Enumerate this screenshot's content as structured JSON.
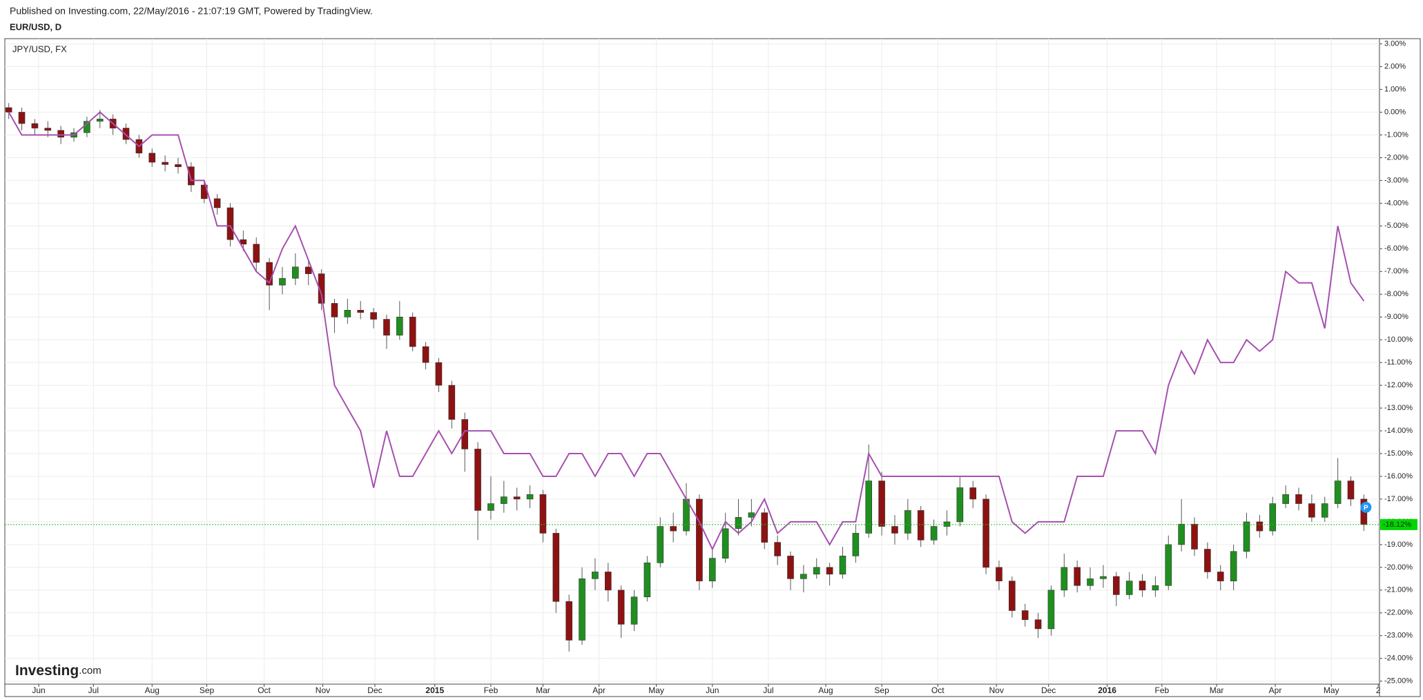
{
  "chart_data": {
    "type": "candlestick",
    "header": "Published on Investing.com, 22/May/2016 - 21:07:19 GMT, Powered by TradingView.",
    "title": "EUR/USD, D",
    "logo": {
      "main": "Investing",
      "suffix": ".com"
    },
    "badge": "P",
    "up_color": "#1f8f1f",
    "down_color": "#8e1212",
    "grid": true,
    "x": [
      0,
      1,
      2,
      3,
      4,
      5,
      6,
      7,
      8,
      9,
      10,
      11,
      12,
      13,
      14,
      15,
      16,
      17,
      18,
      19,
      20,
      21,
      22,
      23,
      24,
      25,
      26,
      27,
      28,
      29,
      30,
      31,
      32,
      33,
      34,
      35,
      36,
      37,
      38,
      39,
      40,
      41,
      42,
      43,
      44,
      45,
      46,
      47,
      48,
      49,
      50,
      51,
      52,
      53,
      54,
      55,
      56,
      57,
      58,
      59,
      60,
      61,
      62,
      63,
      64,
      65,
      66,
      67,
      68,
      69,
      70,
      71,
      72,
      73,
      74,
      75,
      76,
      77,
      78,
      79,
      80,
      81,
      82,
      83,
      84,
      85,
      86,
      87,
      88,
      89,
      90,
      91,
      92,
      93,
      94,
      95,
      96,
      97,
      98,
      99,
      100,
      101,
      102,
      103,
      104
    ],
    "open": [
      0.2,
      0,
      -0.5,
      -0.7,
      -0.8,
      -1.1,
      -0.9,
      -0.4,
      -0.3,
      -0.7,
      -1.2,
      -1.8,
      -2.2,
      -2.3,
      -2.4,
      -3.2,
      -3.8,
      -4.2,
      -5.6,
      -5.8,
      -6.6,
      -7.6,
      -7.3,
      -6.8,
      -7.1,
      -8.4,
      -9.0,
      -8.7,
      -8.8,
      -9.1,
      -9.8,
      -9.0,
      -10.3,
      -11.0,
      -12.0,
      -13.5,
      -14.8,
      -17.5,
      -17.2,
      -16.9,
      -17.0,
      -16.8,
      -18.5,
      -21.5,
      -23.2,
      -20.5,
      -20.2,
      -21.0,
      -22.5,
      -21.3,
      -19.8,
      -18.2,
      -18.4,
      -17.0,
      -20.6,
      -19.6,
      -18.3,
      -17.8,
      -17.6,
      -18.9,
      -19.5,
      -20.5,
      -20.3,
      -20.0,
      -20.3,
      -19.5,
      -18.5,
      -16.2,
      -18.2,
      -18.5,
      -17.5,
      -18.8,
      -18.2,
      -18.0,
      -16.5,
      -17.0,
      -20.0,
      -20.6,
      -21.9,
      -22.3,
      -22.7,
      -21.0,
      -20.0,
      -20.8,
      -20.5,
      -20.4,
      -21.2,
      -20.6,
      -21.0,
      -20.8,
      -19.0,
      -18.1,
      -19.2,
      -20.2,
      -20.6,
      -19.3,
      -18.0,
      -18.4,
      -17.2,
      -16.8,
      -17.2,
      -17.8,
      -17.2,
      -16.2,
      -17.0
    ],
    "high": [
      0.4,
      0.2,
      -0.3,
      -0.4,
      -0.6,
      -0.7,
      -0.2,
      0.1,
      -0.1,
      -0.5,
      -1.0,
      -1.6,
      -1.9,
      -2.0,
      -2.2,
      -3.0,
      -3.6,
      -4.0,
      -5.2,
      -5.5,
      -6.4,
      -6.8,
      -6.2,
      -6.5,
      -6.9,
      -8.2,
      -8.2,
      -8.3,
      -8.6,
      -8.9,
      -8.3,
      -8.8,
      -10.1,
      -10.8,
      -11.8,
      -13.2,
      -14.5,
      -16.0,
      -16.2,
      -16.5,
      -16.4,
      -16.6,
      -18.3,
      -21.2,
      -20.0,
      -19.6,
      -19.8,
      -20.8,
      -21.0,
      -19.5,
      -17.8,
      -17.6,
      -16.3,
      -16.8,
      -19.2,
      -17.6,
      -17.0,
      -17.0,
      -17.4,
      -18.6,
      -19.3,
      -19.9,
      -19.6,
      -19.8,
      -19.1,
      -18.1,
      -14.6,
      -15.8,
      -17.7,
      -17.0,
      -17.3,
      -17.9,
      -17.5,
      -16.0,
      -16.2,
      -16.8,
      -19.7,
      -20.4,
      -21.6,
      -22.0,
      -20.8,
      -19.4,
      -19.7,
      -20.0,
      -19.9,
      -20.2,
      -20.2,
      -20.3,
      -20.4,
      -18.6,
      -17.0,
      -17.8,
      -18.9,
      -19.9,
      -19.0,
      -17.6,
      -17.7,
      -16.9,
      -16.4,
      -16.5,
      -16.8,
      -16.9,
      -15.2,
      -16.0,
      -16.8
    ],
    "low": [
      -0.3,
      -0.8,
      -1.0,
      -1.1,
      -1.4,
      -1.3,
      -1.1,
      -0.7,
      -1.0,
      -1.4,
      -2.0,
      -2.4,
      -2.6,
      -2.7,
      -3.5,
      -4.0,
      -4.5,
      -5.9,
      -6.1,
      -7.0,
      -8.7,
      -8.0,
      -7.6,
      -7.6,
      -8.7,
      -9.7,
      -9.3,
      -9.1,
      -9.5,
      -10.4,
      -10.0,
      -10.5,
      -11.3,
      -12.3,
      -13.9,
      -15.8,
      -18.8,
      -17.9,
      -17.6,
      -17.5,
      -17.4,
      -18.9,
      -22.0,
      -23.7,
      -23.4,
      -21.0,
      -21.5,
      -23.1,
      -22.8,
      -21.5,
      -20.0,
      -18.9,
      -18.6,
      -21.0,
      -20.9,
      -19.8,
      -18.6,
      -18.2,
      -19.2,
      -19.9,
      -21.0,
      -21.1,
      -20.5,
      -20.8,
      -20.5,
      -19.8,
      -18.7,
      -18.6,
      -19.0,
      -18.8,
      -19.1,
      -19.0,
      -18.6,
      -18.2,
      -17.4,
      -20.3,
      -21.0,
      -22.2,
      -22.6,
      -23.1,
      -23.0,
      -21.3,
      -21.1,
      -21.0,
      -20.9,
      -21.7,
      -21.4,
      -21.3,
      -21.3,
      -21.0,
      -19.3,
      -19.5,
      -20.5,
      -21.0,
      -21.0,
      -19.6,
      -18.7,
      -18.6,
      -17.4,
      -17.5,
      -18.0,
      -18.0,
      -17.4,
      -17.3,
      -18.4
    ],
    "close": [
      0,
      -0.5,
      -0.7,
      -0.8,
      -1.1,
      -0.9,
      -0.4,
      -0.3,
      -0.7,
      -1.2,
      -1.8,
      -2.2,
      -2.3,
      -2.4,
      -3.2,
      -3.8,
      -4.2,
      -5.6,
      -5.8,
      -6.6,
      -7.6,
      -7.3,
      -6.8,
      -7.1,
      -8.4,
      -9.0,
      -8.7,
      -8.8,
      -9.1,
      -9.8,
      -9.0,
      -10.3,
      -11.0,
      -12.0,
      -13.5,
      -14.8,
      -17.5,
      -17.2,
      -16.9,
      -17.0,
      -16.8,
      -18.5,
      -21.5,
      -23.2,
      -20.5,
      -20.2,
      -21.0,
      -22.5,
      -21.3,
      -19.8,
      -18.2,
      -18.4,
      -17.0,
      -20.6,
      -19.6,
      -18.3,
      -17.8,
      -17.6,
      -18.9,
      -19.5,
      -20.5,
      -20.3,
      -20.0,
      -20.3,
      -19.5,
      -18.5,
      -16.2,
      -18.2,
      -18.5,
      -17.5,
      -18.8,
      -18.2,
      -18.0,
      -16.5,
      -17.0,
      -20.0,
      -20.6,
      -21.9,
      -22.3,
      -22.7,
      -21.0,
      -20.0,
      -20.8,
      -20.5,
      -20.4,
      -21.2,
      -20.6,
      -21.0,
      -20.8,
      -19.0,
      -18.1,
      -19.2,
      -20.2,
      -20.6,
      -19.3,
      -18.0,
      -18.4,
      -17.2,
      -16.8,
      -17.2,
      -17.8,
      -17.2,
      -16.2,
      -17.0,
      -18.12
    ],
    "comparison": {
      "name": "JPY/USD, FX",
      "color": "#a64fb0",
      "values": [
        0,
        -1,
        -1,
        -1,
        -1,
        -1,
        -0.5,
        0,
        -0.5,
        -1,
        -1.5,
        -1,
        -1,
        -1,
        -3,
        -3,
        -5,
        -5,
        -6,
        -7,
        -7.5,
        -6,
        -5,
        -6.5,
        -8,
        -12,
        -13,
        -14,
        -16.5,
        -14,
        -16,
        -16,
        -15,
        -14,
        -15,
        -14,
        -14,
        -14,
        -15,
        -15,
        -15,
        -16,
        -16,
        -15,
        -15,
        -16,
        -15,
        -15,
        -16,
        -15,
        -15,
        -16,
        -17,
        -18,
        -19.2,
        -18,
        -18.5,
        -18,
        -17,
        -18.5,
        -18,
        -18,
        -18,
        -19,
        -18,
        -18,
        -15,
        -16,
        -16,
        -16,
        -16,
        -16,
        -16,
        -16,
        -16,
        -16,
        -16,
        -18,
        -18.5,
        -18,
        -18,
        -18,
        -16,
        -16,
        -16,
        -14,
        -14,
        -14,
        -15,
        -12,
        -10.5,
        -11.5,
        -10,
        -11,
        -11,
        -10,
        -10.5,
        -10,
        -7,
        -7.5,
        -7.5,
        -9.5,
        -5,
        -7.5,
        -8.3
      ]
    },
    "last_price": {
      "value": -18.12,
      "label": "-18.12%"
    },
    "xlim": [
      -0.3,
      105.2
    ],
    "xticks": [
      {
        "value": 2.3,
        "label": "Jun"
      },
      {
        "value": 6.5,
        "label": "Jul"
      },
      {
        "value": 11.0,
        "label": "Aug"
      },
      {
        "value": 15.2,
        "label": "Sep"
      },
      {
        "value": 19.6,
        "label": "Oct"
      },
      {
        "value": 24.1,
        "label": "Nov"
      },
      {
        "value": 28.1,
        "label": "Dec"
      },
      {
        "value": 32.7,
        "label": "2015"
      },
      {
        "value": 37.0,
        "label": "Feb"
      },
      {
        "value": 41.0,
        "label": "Mar"
      },
      {
        "value": 45.3,
        "label": "Apr"
      },
      {
        "value": 49.7,
        "label": "May"
      },
      {
        "value": 54.0,
        "label": "Jun"
      },
      {
        "value": 58.3,
        "label": "Jul"
      },
      {
        "value": 62.7,
        "label": "Aug"
      },
      {
        "value": 67.0,
        "label": "Sep"
      },
      {
        "value": 71.3,
        "label": "Oct"
      },
      {
        "value": 75.8,
        "label": "Nov"
      },
      {
        "value": 79.8,
        "label": "Dec"
      },
      {
        "value": 84.3,
        "label": "2016"
      },
      {
        "value": 88.5,
        "label": "Feb"
      },
      {
        "value": 92.7,
        "label": "Mar"
      },
      {
        "value": 97.2,
        "label": "Apr"
      },
      {
        "value": 101.5,
        "label": "May"
      },
      {
        "value": 105.1,
        "label": "2"
      }
    ],
    "ylim": [
      -25.1,
      3.2
    ],
    "yticks": [
      {
        "value": 3,
        "label": "3.00%"
      },
      {
        "value": 2,
        "label": "2.00%"
      },
      {
        "value": 1,
        "label": "1.00%"
      },
      {
        "value": 0,
        "label": "0.00%"
      },
      {
        "value": -1,
        "label": "-1.00%"
      },
      {
        "value": -2,
        "label": "-2.00%"
      },
      {
        "value": -3,
        "label": "-3.00%"
      },
      {
        "value": -4,
        "label": "-4.00%"
      },
      {
        "value": -5,
        "label": "-5.00%"
      },
      {
        "value": -6,
        "label": "-6.00%"
      },
      {
        "value": -7,
        "label": "-7.00%"
      },
      {
        "value": -8,
        "label": "-8.00%"
      },
      {
        "value": -9,
        "label": "-9.00%"
      },
      {
        "value": -10,
        "label": "-10.00%"
      },
      {
        "value": -11,
        "label": "-11.00%"
      },
      {
        "value": -12,
        "label": "-12.00%"
      },
      {
        "value": -13,
        "label": "-13.00%"
      },
      {
        "value": -14,
        "label": "-14.00%"
      },
      {
        "value": -15,
        "label": "-15.00%"
      },
      {
        "value": -16,
        "label": "-16.00%"
      },
      {
        "value": -17,
        "label": "-17.00%"
      },
      {
        "value": -18,
        "label": "-18.00%"
      },
      {
        "value": -19,
        "label": "-19.00%"
      },
      {
        "value": -20,
        "label": "-20.00%"
      },
      {
        "value": -21,
        "label": "-21.00%"
      },
      {
        "value": -22,
        "label": "-22.00%"
      },
      {
        "value": -23,
        "label": "-23.00%"
      },
      {
        "value": -24,
        "label": "-24.00%"
      },
      {
        "value": -25,
        "label": "-25.00%"
      }
    ]
  }
}
